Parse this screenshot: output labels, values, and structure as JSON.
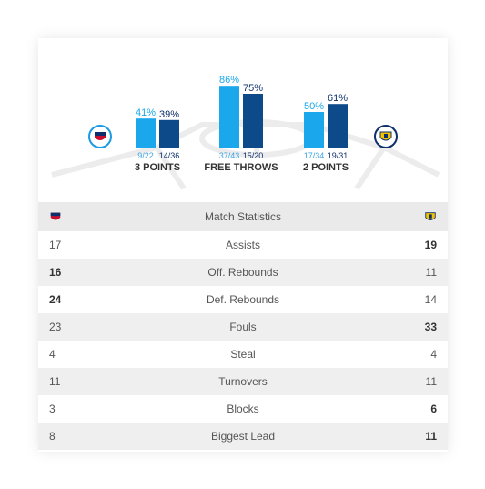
{
  "colors": {
    "home": "#1aa7ec",
    "away": "#0d4a8a",
    "label_away": "#0d2f6b",
    "fraction": "#3aa3e3"
  },
  "icons": {
    "home_team": "cska-logo-icon",
    "away_team": "khimki-logo-icon"
  },
  "chart_data": {
    "type": "bar",
    "categories": [
      "3 POINTS",
      "FREE THROWS",
      "2 POINTS"
    ],
    "series": [
      {
        "values": [
          41,
          86,
          50
        ],
        "fractions": [
          "9/22",
          "37/43",
          "17/34"
        ]
      },
      {
        "values": [
          39,
          75,
          61
        ],
        "fractions": [
          "14/36",
          "15/20",
          "19/31"
        ]
      }
    ],
    "unit": "%",
    "ylim": [
      0,
      100
    ]
  },
  "table": {
    "header": "Match Statistics",
    "rows": [
      {
        "label": "Assists",
        "home": "17",
        "away": "19",
        "bold": "away"
      },
      {
        "label": "Off. Rebounds",
        "home": "16",
        "away": "11",
        "bold": "home"
      },
      {
        "label": "Def. Rebounds",
        "home": "24",
        "away": "14",
        "bold": "home"
      },
      {
        "label": "Fouls",
        "home": "23",
        "away": "33",
        "bold": "away"
      },
      {
        "label": "Steal",
        "home": "4",
        "away": "4",
        "bold": "none"
      },
      {
        "label": "Turnovers",
        "home": "11",
        "away": "11",
        "bold": "none"
      },
      {
        "label": "Blocks",
        "home": "3",
        "away": "6",
        "bold": "away"
      },
      {
        "label": "Biggest Lead",
        "home": "8",
        "away": "11",
        "bold": "away"
      }
    ]
  }
}
